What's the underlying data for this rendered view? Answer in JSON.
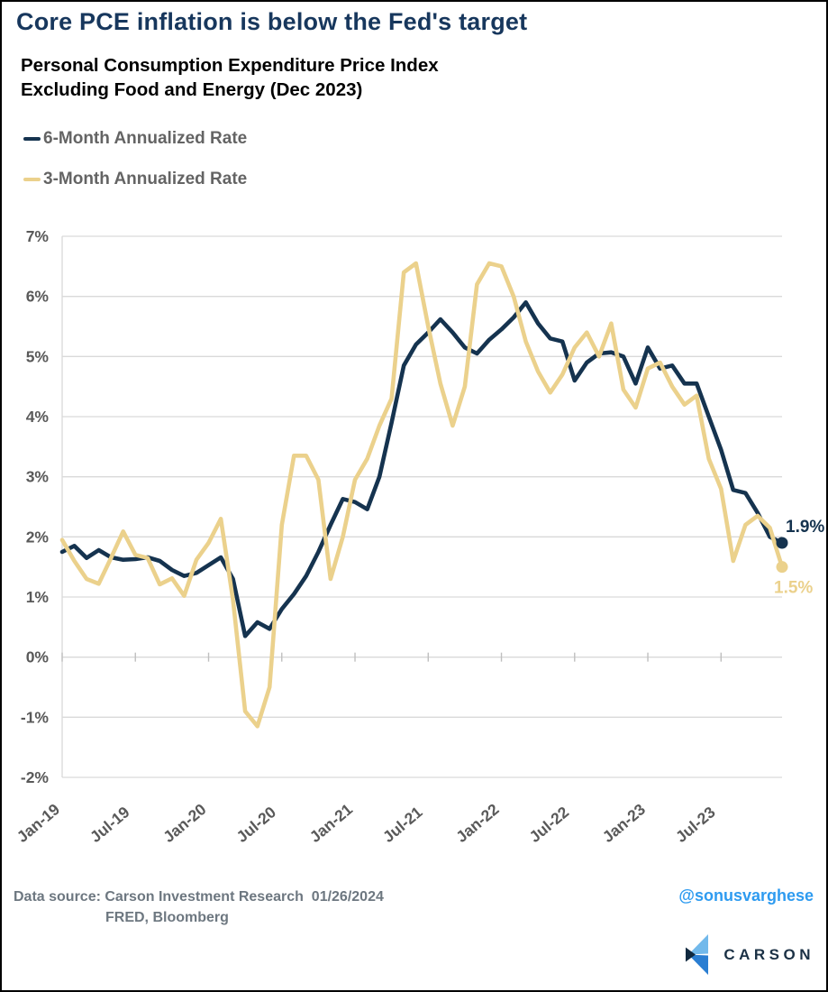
{
  "header": {
    "title": "Core PCE inflation is below the Fed's target",
    "subtitle": "Personal Consumption Expenditure Price Index\nExcluding Food and Energy (Dec 2023)"
  },
  "legend": [
    {
      "label": "6-Month Annualized Rate"
    },
    {
      "label": "3-Month Annualized Rate"
    }
  ],
  "chart_data": {
    "type": "line",
    "x_unit": "month",
    "n_points": 60,
    "x_range": [
      "Jan-2019",
      "Dec-2023"
    ],
    "x_tick_labels": [
      "Jan-19",
      "Jul-19",
      "Jan-20",
      "Jul-20",
      "Jan-21",
      "Jul-21",
      "Jan-22",
      "Jul-22",
      "Jan-23",
      "Jul-23"
    ],
    "x_tick_indices": [
      0,
      6,
      12,
      18,
      24,
      30,
      36,
      42,
      48,
      54
    ],
    "y_tick_labels": [
      "7%",
      "6%",
      "5%",
      "4%",
      "3%",
      "2%",
      "1%",
      "0%",
      "-1%",
      "-2%"
    ],
    "ylim": [
      -2,
      7
    ],
    "grid": "horizontal",
    "grid_color": "#d9d9d9",
    "tick_color": "#bfbfbf",
    "axis_label_color": "#595959",
    "legend_position": "top-left",
    "series": [
      {
        "name": "6-Month Annualized Rate",
        "color": "#15334f",
        "end_label": "1.9%",
        "values": [
          1.75,
          1.85,
          1.65,
          1.78,
          1.66,
          1.62,
          1.63,
          1.66,
          1.6,
          1.45,
          1.35,
          1.4,
          1.53,
          1.66,
          1.3,
          0.35,
          0.58,
          0.47,
          0.8,
          1.05,
          1.35,
          1.75,
          2.2,
          2.63,
          2.58,
          2.46,
          3.0,
          3.9,
          4.85,
          5.2,
          5.4,
          5.62,
          5.4,
          5.15,
          5.05,
          5.28,
          5.45,
          5.65,
          5.9,
          5.55,
          5.3,
          5.25,
          4.6,
          4.9,
          5.05,
          5.07,
          5.0,
          4.55,
          5.15,
          4.8,
          4.85,
          4.55,
          4.55,
          4.0,
          3.45,
          2.78,
          2.73,
          2.4,
          2.0,
          1.9
        ]
      },
      {
        "name": "3-Month Annualized Rate",
        "color": "#ebd18c",
        "end_label": "1.5%",
        "values": [
          1.95,
          1.6,
          1.3,
          1.22,
          1.65,
          2.09,
          1.7,
          1.65,
          1.21,
          1.31,
          1.02,
          1.62,
          1.9,
          2.3,
          0.95,
          -0.9,
          -1.15,
          -0.5,
          2.2,
          3.35,
          3.35,
          2.95,
          1.3,
          2.0,
          2.95,
          3.3,
          3.85,
          4.3,
          6.4,
          6.55,
          5.5,
          4.55,
          3.85,
          4.5,
          6.2,
          6.55,
          6.5,
          6.0,
          5.25,
          4.75,
          4.4,
          4.7,
          5.15,
          5.4,
          5.0,
          5.55,
          4.45,
          4.15,
          4.8,
          4.9,
          4.5,
          4.2,
          4.35,
          3.3,
          2.8,
          1.6,
          2.2,
          2.35,
          2.15,
          1.5
        ]
      }
    ]
  },
  "footer": {
    "source_line1": "Data source: Carson Investment Research  01/26/2024",
    "source_line2": "FRED, Bloomberg",
    "handle": "@sonusvarghese",
    "handle_color": "#2e9bf0"
  },
  "brand": {
    "wordmark": "CARSON",
    "wordmark_color": "#1b3145",
    "icon_colors": {
      "light": "#72b9eb",
      "mid": "#2a7ed2",
      "dark": "#10293f"
    }
  }
}
